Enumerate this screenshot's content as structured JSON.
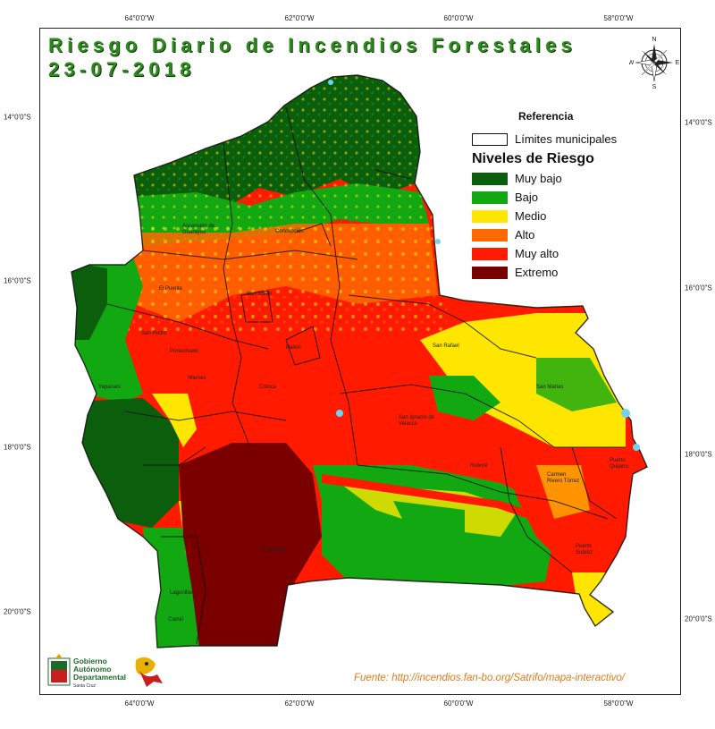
{
  "title": "Riesgo Diario de Incendios Forestales",
  "date": "23-07-2018",
  "axes": {
    "longitude_ticks": [
      "64°0'0\"W",
      "62°0'0\"W",
      "60°0'0\"W",
      "58°0'0\"W"
    ],
    "latitude_ticks_left": [
      "14°0'0\"S",
      "16°0'0\"S",
      "18°0'0\"S",
      "20°0'0\"S"
    ],
    "latitude_ticks_right": [
      "14°0'0\"S",
      "16°0'0\"S",
      "18°0'0\"S",
      "20°0'0\"S"
    ]
  },
  "compass": {
    "n": "N",
    "s": "S",
    "e": "E",
    "w": "W",
    "icon": "compass-rose-icon"
  },
  "legend": {
    "heading": "Referencia",
    "municipal_limits": "Límites municipales",
    "levels_title": "Niveles de Riesgo",
    "levels": [
      {
        "label": "Muy bajo",
        "color": "#0b5e0b"
      },
      {
        "label": "Bajo",
        "color": "#12a812"
      },
      {
        "label": "Medio",
        "color": "#ffe600"
      },
      {
        "label": "Alto",
        "color": "#ff6a00"
      },
      {
        "label": "Muy alto",
        "color": "#ff1a00"
      },
      {
        "label": "Extremo",
        "color": "#7a0000"
      }
    ]
  },
  "places": [
    "San Ignacio de Velasco",
    "San Matías",
    "San Rafael",
    "Roboré",
    "Carmen Rivero Tórrez",
    "Puerto Quijarro",
    "Puerto Suárez",
    "Charagua",
    "Concepción",
    "Ascensión de Guarayos",
    "San Julián",
    "Pailón",
    "Cotoca",
    "Camiri",
    "Lagunillas",
    "San Pedro",
    "Portachuelo",
    "Warnes",
    "El Puente",
    "Yapacaní"
  ],
  "logo": {
    "line1": "Gobierno",
    "line2": "Autónomo",
    "line3": "Departamental",
    "line4": "Santa Cruz"
  },
  "source": "Fuente: http://incendios.fan-bo.org/Satrifo/mapa-interactivo/"
}
